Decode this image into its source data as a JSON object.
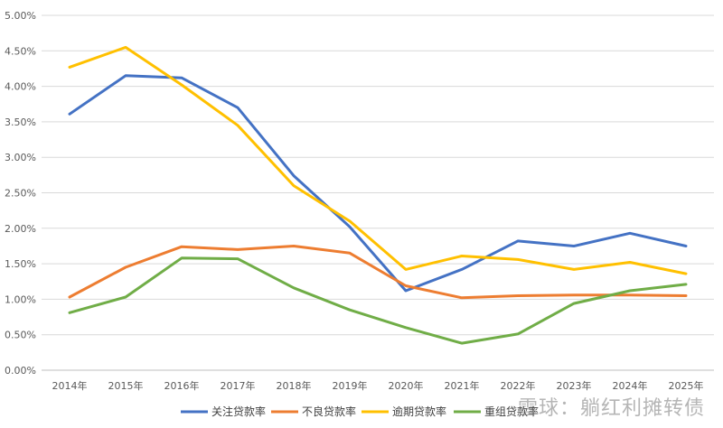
{
  "chart_data": {
    "type": "line",
    "categories": [
      "2014年",
      "2015年",
      "2016年",
      "2017年",
      "2018年",
      "2019年",
      "2020年",
      "2021年",
      "2022年",
      "2023年",
      "2024年",
      "2025年"
    ],
    "y_ticks": [
      "0.00%",
      "0.50%",
      "1.00%",
      "1.50%",
      "2.00%",
      "2.50%",
      "3.00%",
      "3.50%",
      "4.00%",
      "4.50%",
      "5.00%"
    ],
    "ylim": [
      0,
      5
    ],
    "grid": true,
    "legend_position": "bottom",
    "series": [
      {
        "name": "关注贷款率",
        "color": "#4472C4",
        "values": [
          3.61,
          4.15,
          4.12,
          3.7,
          2.74,
          2.02,
          1.12,
          1.42,
          1.82,
          1.75,
          1.93,
          1.75
        ]
      },
      {
        "name": "不良贷款率",
        "color": "#ED7D31",
        "values": [
          1.03,
          1.45,
          1.74,
          1.7,
          1.75,
          1.65,
          1.19,
          1.02,
          1.05,
          1.06,
          1.06,
          1.05
        ]
      },
      {
        "name": "逾期贷款率",
        "color": "#FFC000",
        "values": [
          4.27,
          4.55,
          4.02,
          3.45,
          2.6,
          2.1,
          1.42,
          1.61,
          1.56,
          1.42,
          1.52,
          1.36
        ]
      },
      {
        "name": "重组贷款率",
        "color": "#70AD47",
        "values": [
          0.81,
          1.03,
          1.58,
          1.57,
          1.16,
          0.85,
          0.6,
          0.38,
          0.51,
          0.94,
          1.12,
          1.21
        ]
      }
    ]
  },
  "watermark": "雪球：躺红利摊转债"
}
